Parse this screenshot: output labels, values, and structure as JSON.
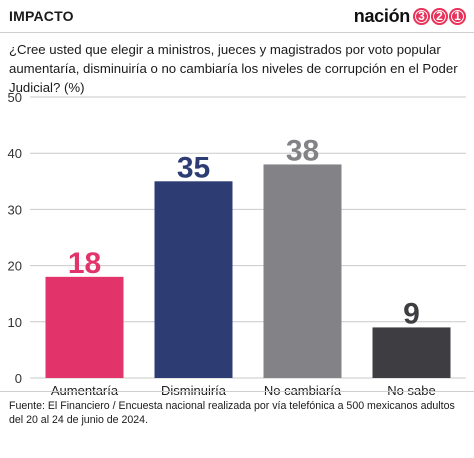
{
  "header": {
    "section": "IMPACTO",
    "brand_text": "nación",
    "brand_digits": [
      "3",
      "2",
      "1"
    ],
    "brand_color": "#e8325a"
  },
  "question": "¿Cree usted que elegir a ministros, jueces y magistrados por voto popular aumentaría, disminuiría o no cambiaría los niveles de corrupción en el Poder Judicial? (%)",
  "source": "Fuente: El Financiero / Encuesta nacional realizada por vía telefónica a 500 mexicanos adultos del 20 al 24 de junio de 2024.",
  "chart_data": {
    "type": "bar",
    "title": "",
    "xlabel": "",
    "ylabel": "",
    "ylim": [
      0,
      50
    ],
    "yticks": [
      0,
      10,
      20,
      30,
      40,
      50
    ],
    "grid": true,
    "categories": [
      "Aumentaría",
      "Disminuiría",
      "No cambiaría",
      "No sabe"
    ],
    "values": [
      18,
      35,
      38,
      9
    ],
    "colors": [
      "#e2336b",
      "#2d3d73",
      "#838387",
      "#3e3e42"
    ]
  }
}
